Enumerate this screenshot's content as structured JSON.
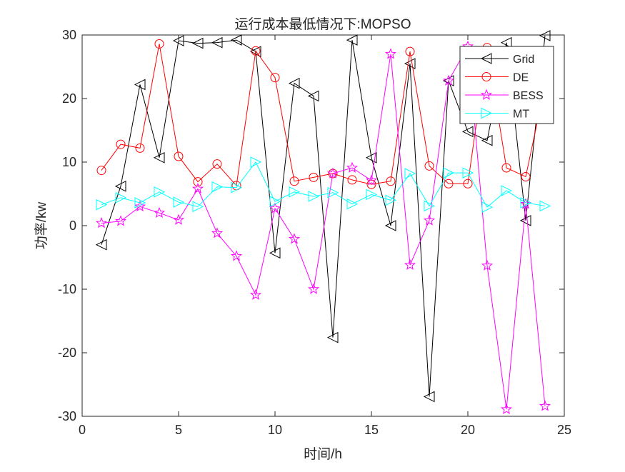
{
  "chart_data": {
    "type": "line",
    "title": "运行成本最低情况下:MOPSO",
    "xlabel": "时间/h",
    "ylabel": "功率/kw",
    "xlim": [
      0,
      25
    ],
    "ylim": [
      -30,
      30
    ],
    "xticks": [
      0,
      5,
      10,
      15,
      20,
      25
    ],
    "yticks": [
      -30,
      -20,
      -10,
      0,
      10,
      20,
      30
    ],
    "grid": false,
    "legend_position": "top-right",
    "x": [
      1,
      2,
      3,
      4,
      5,
      6,
      7,
      8,
      9,
      10,
      11,
      12,
      13,
      14,
      15,
      16,
      17,
      18,
      19,
      20,
      21,
      22,
      23,
      24
    ],
    "series": [
      {
        "name": "Grid",
        "color": "#000000",
        "marker": "triangle-left",
        "values": [
          -3.0,
          6.2,
          22.2,
          10.7,
          29.1,
          28.7,
          28.8,
          29.2,
          27.4,
          -4.3,
          22.4,
          20.4,
          -17.6,
          29.2,
          10.7,
          0.0,
          25.5,
          -26.9,
          22.8,
          14.8,
          13.4,
          28.8,
          0.8,
          29.9
        ]
      },
      {
        "name": "DE",
        "color": "#ff0000",
        "marker": "circle",
        "values": [
          8.7,
          12.8,
          12.2,
          28.6,
          10.9,
          6.9,
          9.7,
          6.3,
          27.5,
          23.3,
          7.0,
          7.6,
          8.2,
          7.2,
          6.5,
          7.0,
          27.4,
          9.4,
          6.6,
          6.6,
          28.0,
          9.1,
          7.7,
          22.0
        ]
      },
      {
        "name": "BESS",
        "color": "#ff00ff",
        "marker": "star",
        "values": [
          0.4,
          0.7,
          3.0,
          2.0,
          0.9,
          5.8,
          -1.2,
          -4.8,
          -10.9,
          2.7,
          -2.1,
          -10.0,
          8.2,
          9.1,
          7.1,
          27.0,
          -6.2,
          0.8,
          22.8,
          28.2,
          -6.3,
          -28.9,
          3.4,
          -28.4
        ]
      },
      {
        "name": "MT",
        "color": "#00ffff",
        "marker": "triangle-right",
        "values": [
          3.3,
          4.4,
          3.6,
          5.3,
          3.7,
          3.0,
          6.1,
          6.0,
          10.0,
          3.8,
          5.3,
          4.6,
          5.2,
          3.4,
          4.9,
          4.0,
          8.2,
          3.1,
          8.3,
          8.3,
          2.9,
          5.5,
          3.6,
          3.1
        ]
      }
    ]
  }
}
